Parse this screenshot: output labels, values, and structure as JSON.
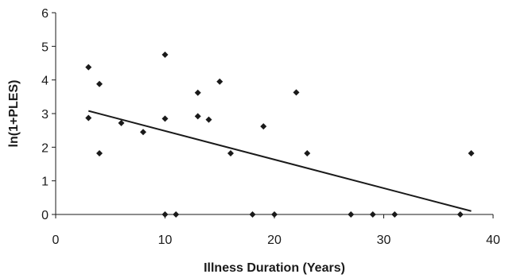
{
  "chart_data": {
    "type": "scatter",
    "title": "",
    "xlabel": "Illness Duration (Years)",
    "ylabel": "ln(1+PLES)",
    "xlim": [
      0,
      40
    ],
    "ylim": [
      0,
      6
    ],
    "x_ticks": [
      "0",
      "10",
      "20",
      "30",
      "40"
    ],
    "y_ticks": [
      "0",
      "1",
      "2",
      "3",
      "4",
      "5",
      "6"
    ],
    "grid": false,
    "legend": "none",
    "marker": "diamond",
    "marker_color": "#1a1a1a",
    "series": [
      {
        "points": [
          [
            3,
            4.38
          ],
          [
            3,
            2.87
          ],
          [
            4,
            3.88
          ],
          [
            4,
            1.82
          ],
          [
            6,
            2.72
          ],
          [
            8,
            2.45
          ],
          [
            10,
            4.75
          ],
          [
            10,
            2.85
          ],
          [
            10,
            0
          ],
          [
            11,
            0
          ],
          [
            13,
            3.62
          ],
          [
            13,
            2.92
          ],
          [
            14,
            2.82
          ],
          [
            15,
            3.95
          ],
          [
            16,
            1.82
          ],
          [
            18,
            0
          ],
          [
            19,
            2.62
          ],
          [
            20,
            0
          ],
          [
            22,
            3.63
          ],
          [
            23,
            1.82
          ],
          [
            27,
            0
          ],
          [
            29,
            0
          ],
          [
            31,
            0
          ],
          [
            37,
            0
          ],
          [
            38,
            1.82
          ]
        ]
      }
    ],
    "trendline": {
      "x": [
        3,
        38
      ],
      "y": [
        3.08,
        0.1
      ]
    }
  }
}
